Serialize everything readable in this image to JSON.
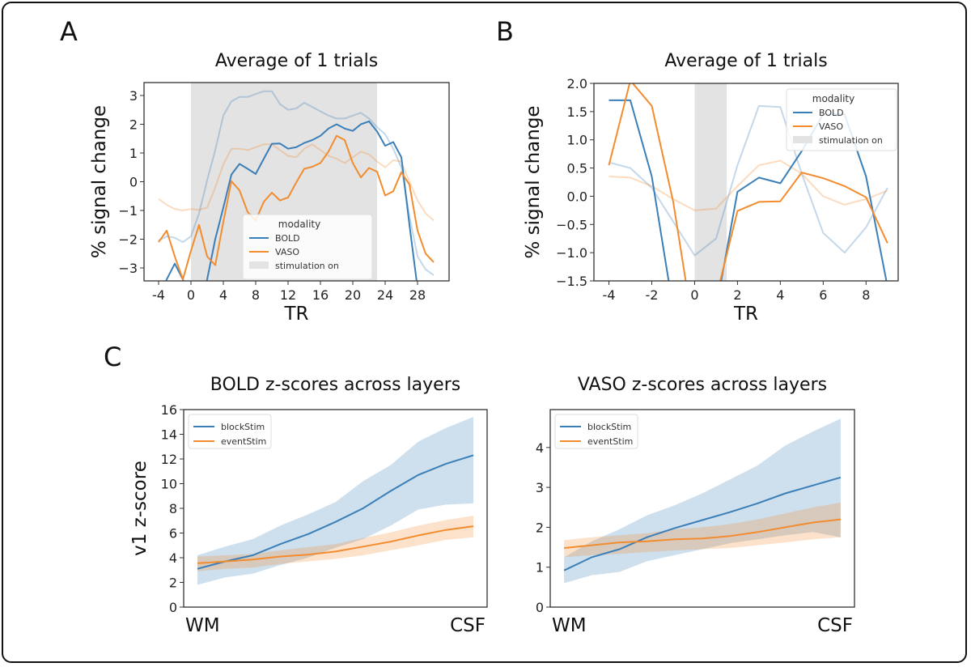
{
  "panel_letters": {
    "a": "A",
    "b": "B",
    "c": "C"
  },
  "colors": {
    "bold": "#3b7fb8",
    "vaso": "#f28c2e",
    "stim": "#e3e3e3"
  },
  "chart_data": [
    {
      "id": "A",
      "type": "line",
      "title": "Average of 1 trials",
      "xlabel": "TR",
      "ylabel": "% signal change",
      "xlim": [
        -5.8,
        31.9
      ],
      "ylim": [
        -3.45,
        3.45
      ],
      "xticks": [
        -4,
        0,
        4,
        8,
        12,
        16,
        20,
        24,
        28
      ],
      "yticks": [
        -3,
        -2,
        -1,
        0,
        1,
        2,
        3
      ],
      "grid": false,
      "stimulation": [
        0,
        23
      ],
      "legend": {
        "title": "modality",
        "entries": [
          "BOLD",
          "VASO",
          "stimulation on"
        ],
        "position": "lower-center"
      },
      "series": [
        {
          "name": "BOLD",
          "faint": false,
          "x": [
            -4,
            -3,
            -2,
            -1,
            0,
            1,
            2,
            3,
            4,
            5,
            6,
            7,
            8,
            9,
            10,
            11,
            12,
            13,
            14,
            15,
            16,
            17,
            18,
            19,
            20,
            21,
            22,
            23,
            24,
            25,
            26,
            27,
            28
          ],
          "values": [
            -4.2,
            -3.4,
            -2.85,
            -3.4,
            -4.5,
            -4.6,
            -3.4,
            -2.0,
            -0.9,
            0.25,
            0.62,
            0.45,
            0.27,
            0.8,
            1.32,
            1.33,
            1.15,
            1.2,
            1.35,
            1.45,
            1.6,
            1.85,
            2.0,
            1.85,
            1.77,
            2.0,
            2.1,
            1.75,
            1.25,
            1.38,
            0.85,
            -1.5,
            -3.7
          ]
        },
        {
          "name": "VASO",
          "faint": false,
          "x": [
            -4,
            -3,
            -2,
            -1,
            0,
            1,
            2,
            3,
            4,
            5,
            6,
            7,
            8,
            9,
            10,
            11,
            12,
            13,
            14,
            15,
            16,
            17,
            18,
            19,
            20,
            21,
            22,
            23,
            24,
            25,
            26,
            27,
            28,
            29,
            30
          ],
          "values": [
            -2.1,
            -1.7,
            -2.6,
            -3.4,
            -2.4,
            -1.5,
            -2.6,
            -2.9,
            -1.4,
            0.02,
            -0.3,
            -1.05,
            -1.35,
            -0.7,
            -0.38,
            -0.65,
            -0.55,
            -0.03,
            0.45,
            0.52,
            0.65,
            1.05,
            1.6,
            1.45,
            0.65,
            0.15,
            0.48,
            0.35,
            -0.48,
            -0.33,
            0.33,
            -0.1,
            -1.7,
            -2.5,
            -2.8
          ]
        },
        {
          "name": "BOLD (faint)",
          "faint": true,
          "x": [
            -4,
            -3,
            -2,
            -1,
            0,
            1,
            2,
            3,
            4,
            5,
            6,
            7,
            8,
            9,
            10,
            11,
            12,
            13,
            14,
            15,
            16,
            17,
            18,
            19,
            20,
            21,
            22,
            23,
            24,
            25,
            26,
            27,
            28,
            29,
            30
          ],
          "values": [
            -2.05,
            -1.9,
            -1.95,
            -2.1,
            -1.9,
            -1.1,
            0.05,
            1.1,
            2.3,
            2.8,
            2.95,
            2.95,
            3.05,
            3.15,
            3.15,
            2.7,
            2.5,
            2.55,
            2.75,
            2.6,
            2.45,
            2.3,
            2.2,
            2.2,
            2.3,
            2.4,
            2.2,
            1.9,
            1.65,
            1.15,
            0.5,
            -1.2,
            -2.6,
            -3.05,
            -3.25
          ]
        },
        {
          "name": "VASO (faint)",
          "faint": true,
          "x": [
            -4,
            -3,
            -2,
            -1,
            0,
            1,
            2,
            3,
            4,
            5,
            6,
            7,
            8,
            9,
            10,
            11,
            12,
            13,
            14,
            15,
            16,
            17,
            18,
            19,
            20,
            21,
            22,
            23,
            24,
            25,
            26,
            27,
            28,
            29,
            30
          ],
          "values": [
            -0.6,
            -0.8,
            -0.95,
            -1.0,
            -0.95,
            -0.98,
            -0.9,
            -0.2,
            0.6,
            1.15,
            1.15,
            1.1,
            1.2,
            1.3,
            1.3,
            1.1,
            0.9,
            0.85,
            1.15,
            1.3,
            1.1,
            0.9,
            0.8,
            0.65,
            0.85,
            1.05,
            0.95,
            0.7,
            0.5,
            0.75,
            0.7,
            0.0,
            -0.65,
            -1.1,
            -1.35
          ]
        }
      ]
    },
    {
      "id": "B",
      "type": "line",
      "title": "Average of 1 trials",
      "xlabel": "TR",
      "ylabel": "% signal change",
      "xlim": [
        -4.7,
        9.5
      ],
      "ylim": [
        -1.5,
        2.0
      ],
      "xticks": [
        -4,
        -2,
        0,
        2,
        4,
        6,
        8
      ],
      "yticks": [
        -1.5,
        -1.0,
        -0.5,
        0.0,
        0.5,
        1.0,
        1.5,
        2.0
      ],
      "grid": false,
      "stimulation": [
        0,
        1.5
      ],
      "legend": {
        "title": "modality",
        "entries": [
          "BOLD",
          "VASO",
          "stimulation on"
        ],
        "position": "upper-right"
      },
      "series": [
        {
          "name": "BOLD",
          "faint": false,
          "x": [
            -4,
            -3,
            -2,
            -1,
            0,
            1,
            2,
            3,
            4,
            5,
            6,
            7,
            8,
            9
          ],
          "values": [
            1.7,
            1.7,
            0.35,
            -2.0,
            -3.5,
            -2.0,
            0.08,
            0.33,
            0.23,
            0.8,
            1.45,
            1.45,
            0.35,
            -1.6
          ]
        },
        {
          "name": "VASO",
          "faint": false,
          "x": [
            -4,
            -3,
            -2,
            -1,
            0,
            1,
            2,
            3,
            4,
            5,
            6,
            7,
            8,
            9
          ],
          "values": [
            0.55,
            2.05,
            1.6,
            -0.1,
            -2.5,
            -1.8,
            -0.26,
            -0.1,
            -0.09,
            0.42,
            0.32,
            0.18,
            -0.02,
            -0.83
          ]
        },
        {
          "name": "BOLD (faint)",
          "faint": true,
          "x": [
            -4,
            -3,
            -2,
            -1,
            0,
            1,
            2,
            3,
            4,
            5,
            6,
            7,
            8,
            9
          ],
          "values": [
            0.6,
            0.5,
            0.15,
            -0.45,
            -1.05,
            -0.75,
            0.55,
            1.6,
            1.58,
            0.4,
            -0.65,
            -1.0,
            -0.55,
            0.15
          ]
        },
        {
          "name": "VASO (faint)",
          "faint": true,
          "x": [
            -4,
            -3,
            -2,
            -1,
            0,
            1,
            2,
            3,
            4,
            5,
            6,
            7,
            8,
            9
          ],
          "values": [
            0.35,
            0.33,
            0.18,
            -0.05,
            -0.25,
            -0.22,
            0.18,
            0.55,
            0.63,
            0.4,
            0.0,
            -0.15,
            -0.05,
            0.1
          ]
        }
      ]
    },
    {
      "id": "C-left",
      "type": "line",
      "title": "BOLD z-scores across layers",
      "xlabel": "",
      "ylabel": "v1 z-score",
      "xlim": [
        -0.05,
        1.05
      ],
      "ylim": [
        0,
        16
      ],
      "xtick_labels": [
        "WM",
        "CSF"
      ],
      "yticks": [
        0,
        2,
        4,
        6,
        8,
        10,
        12,
        14,
        16
      ],
      "grid": false,
      "legend": {
        "entries": [
          "blockStim",
          "eventStim"
        ],
        "position": "upper-left"
      },
      "x": [
        0,
        0.1,
        0.2,
        0.3,
        0.4,
        0.5,
        0.6,
        0.7,
        0.8,
        0.9,
        1.0
      ],
      "series": [
        {
          "name": "blockStim",
          "values": [
            3.1,
            3.7,
            4.2,
            5.1,
            5.9,
            6.9,
            8.0,
            9.4,
            10.7,
            11.6,
            12.3
          ],
          "lower": [
            1.8,
            2.4,
            2.7,
            3.4,
            4.0,
            4.8,
            5.5,
            6.6,
            7.9,
            8.3,
            8.4
          ],
          "upper": [
            4.2,
            4.9,
            5.5,
            6.6,
            7.5,
            8.5,
            10.2,
            11.5,
            13.4,
            14.5,
            15.4
          ]
        },
        {
          "name": "eventStim",
          "values": [
            3.55,
            3.7,
            3.85,
            4.1,
            4.25,
            4.5,
            4.9,
            5.3,
            5.8,
            6.25,
            6.55
          ],
          "lower": [
            2.9,
            3.1,
            3.2,
            3.5,
            3.7,
            3.9,
            4.2,
            4.6,
            5.0,
            5.45,
            5.65
          ],
          "upper": [
            4.1,
            4.2,
            4.3,
            4.6,
            4.85,
            5.1,
            5.6,
            6.05,
            6.6,
            7.05,
            7.4
          ]
        }
      ]
    },
    {
      "id": "C-right",
      "type": "line",
      "title": "VASO z-scores across layers",
      "xlabel": "",
      "ylabel": "",
      "xlim": [
        -0.05,
        1.05
      ],
      "ylim": [
        0,
        4.95
      ],
      "xtick_labels": [
        "WM",
        "CSF"
      ],
      "yticks": [
        0,
        1,
        2,
        3,
        4
      ],
      "grid": false,
      "legend": {
        "entries": [
          "blockStim",
          "eventStim"
        ],
        "position": "upper-left"
      },
      "x": [
        0,
        0.1,
        0.2,
        0.3,
        0.4,
        0.5,
        0.6,
        0.7,
        0.8,
        0.9,
        1.0
      ],
      "series": [
        {
          "name": "blockStim",
          "values": [
            0.92,
            1.25,
            1.45,
            1.75,
            1.98,
            2.18,
            2.38,
            2.6,
            2.85,
            3.05,
            3.25
          ],
          "lower": [
            0.6,
            0.8,
            0.88,
            1.15,
            1.3,
            1.45,
            1.6,
            1.7,
            1.8,
            1.88,
            1.75
          ],
          "upper": [
            1.25,
            1.65,
            1.95,
            2.3,
            2.55,
            2.85,
            3.2,
            3.55,
            4.05,
            4.4,
            4.72
          ]
        },
        {
          "name": "eventStim",
          "values": [
            1.48,
            1.55,
            1.62,
            1.65,
            1.7,
            1.72,
            1.78,
            1.88,
            2.0,
            2.12,
            2.2
          ],
          "lower": [
            1.25,
            1.3,
            1.33,
            1.38,
            1.42,
            1.45,
            1.48,
            1.55,
            1.62,
            1.7,
            1.75
          ],
          "upper": [
            1.68,
            1.75,
            1.8,
            1.85,
            1.95,
            2.0,
            2.08,
            2.2,
            2.35,
            2.5,
            2.62
          ]
        }
      ]
    }
  ]
}
